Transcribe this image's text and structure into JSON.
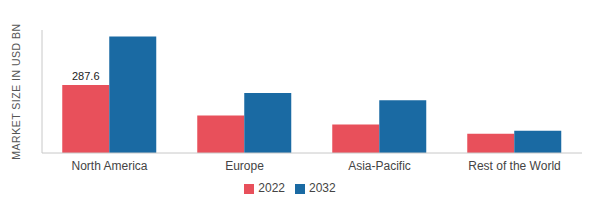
{
  "chart_data": {
    "type": "bar",
    "y_label": "MARKET SIZE IN USD BN",
    "categories": [
      "North America",
      "Europe",
      "Asia-Pacific",
      "Rest of the World"
    ],
    "series": [
      {
        "name": "2022",
        "color": "#e8505b",
        "values": [
          287.6,
          159,
          121,
          81
        ],
        "value_labels": [
          "287.6",
          null,
          null,
          null
        ]
      },
      {
        "name": "2032",
        "color": "#1a6aa3",
        "values": [
          493,
          254,
          223,
          94
        ]
      }
    ],
    "ylim": [
      0,
      520
    ],
    "tick_labels": "x",
    "grid": false,
    "legend": "bottom"
  }
}
